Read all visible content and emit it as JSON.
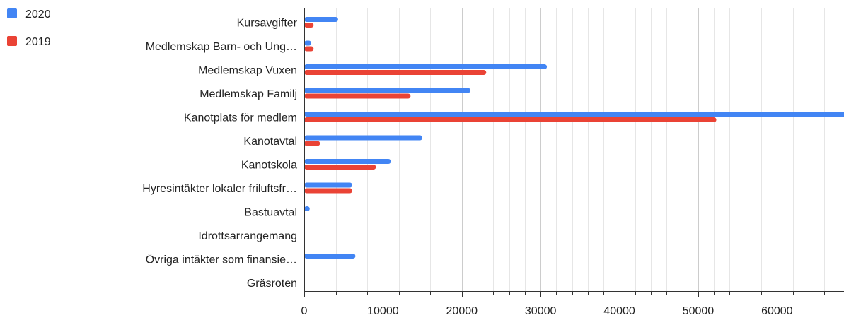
{
  "chart_data": {
    "type": "bar",
    "orientation": "horizontal",
    "categories": [
      "Kursavgifter",
      "Medlemskap Barn- och Ung…",
      "Medlemskap Vuxen",
      "Medlemskap Familj",
      "Kanotplats för medlem",
      "Kanotavtal",
      "Kanotskola",
      "Hyresintäkter lokaler friluftsfr…",
      "Bastuavtal",
      "Idrottsarrangemang",
      "Övriga intäkter som finansie…",
      "Gräsroten"
    ],
    "series": [
      {
        "name": "2020",
        "color": "#4285f4",
        "values": [
          4300,
          900,
          30800,
          21100,
          69000,
          15000,
          11000,
          6100,
          700,
          0,
          6500,
          0
        ]
      },
      {
        "name": "2019",
        "color": "#ea4335",
        "values": [
          1200,
          1200,
          23100,
          13500,
          52300,
          2000,
          9100,
          6100,
          0,
          0,
          0,
          0
        ]
      }
    ],
    "xlim": [
      0,
      68500
    ],
    "xticks": [
      "0",
      "10000",
      "20000",
      "30000",
      "40000",
      "50000",
      "60000"
    ],
    "grid": true,
    "legend_position": "top-left"
  }
}
